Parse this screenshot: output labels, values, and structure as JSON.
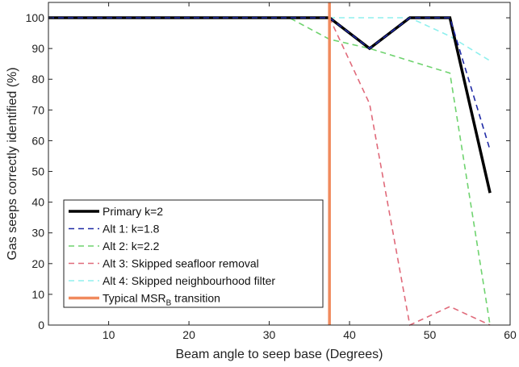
{
  "chart_data": {
    "type": "line",
    "xlabel": "Beam angle to seep base (Degrees)",
    "ylabel": "Gas seeps correctly identified (%)",
    "xlim": [
      2.5,
      60
    ],
    "ylim": [
      0,
      105
    ],
    "xticks": [
      10,
      20,
      30,
      40,
      50,
      60
    ],
    "yticks": [
      0,
      10,
      20,
      30,
      40,
      50,
      60,
      70,
      80,
      90,
      100
    ],
    "grid": false,
    "legend_position": "bottom-left",
    "series": [
      {
        "name": "Primary k=2",
        "color": "#000000",
        "style": "solid-thick",
        "x": [
          2.5,
          37.5,
          42.5,
          47.5,
          52.5,
          57.5
        ],
        "y": [
          100,
          100,
          90,
          100,
          100,
          43
        ]
      },
      {
        "name": "Alt 1: k=1.8",
        "color": "#1f2aa6",
        "style": "dashed",
        "x": [
          2.5,
          37.5,
          42.5,
          47.5,
          52.5,
          57.5
        ],
        "y": [
          100,
          100,
          90,
          100,
          100,
          57
        ]
      },
      {
        "name": "Alt 2: k=2.2",
        "color": "#6fd36f",
        "style": "dashed",
        "x": [
          2.5,
          32.5,
          37.5,
          42.5,
          47.5,
          52.5,
          57.5
        ],
        "y": [
          100,
          100,
          93,
          90,
          86,
          82,
          0
        ]
      },
      {
        "name": "Alt 3: Skipped seafloor removal",
        "color": "#e06a7a",
        "style": "dashed",
        "x": [
          2.5,
          37.5,
          42.5,
          47.5,
          52.5,
          57.5
        ],
        "y": [
          100,
          100,
          72,
          0,
          6,
          0
        ]
      },
      {
        "name": "Alt 4: Skipped neighbourhood filter",
        "color": "#8ff0ee",
        "style": "dashed",
        "x": [
          2.5,
          37.5,
          42.5,
          47.5,
          52.5,
          57.5
        ],
        "y": [
          100,
          100,
          100,
          100,
          94,
          86
        ]
      }
    ],
    "vline": {
      "name_main": "Typical MSR",
      "name_sub": "B",
      "name_tail": " transition",
      "x": 37.5,
      "color": "#f08a5d"
    }
  }
}
